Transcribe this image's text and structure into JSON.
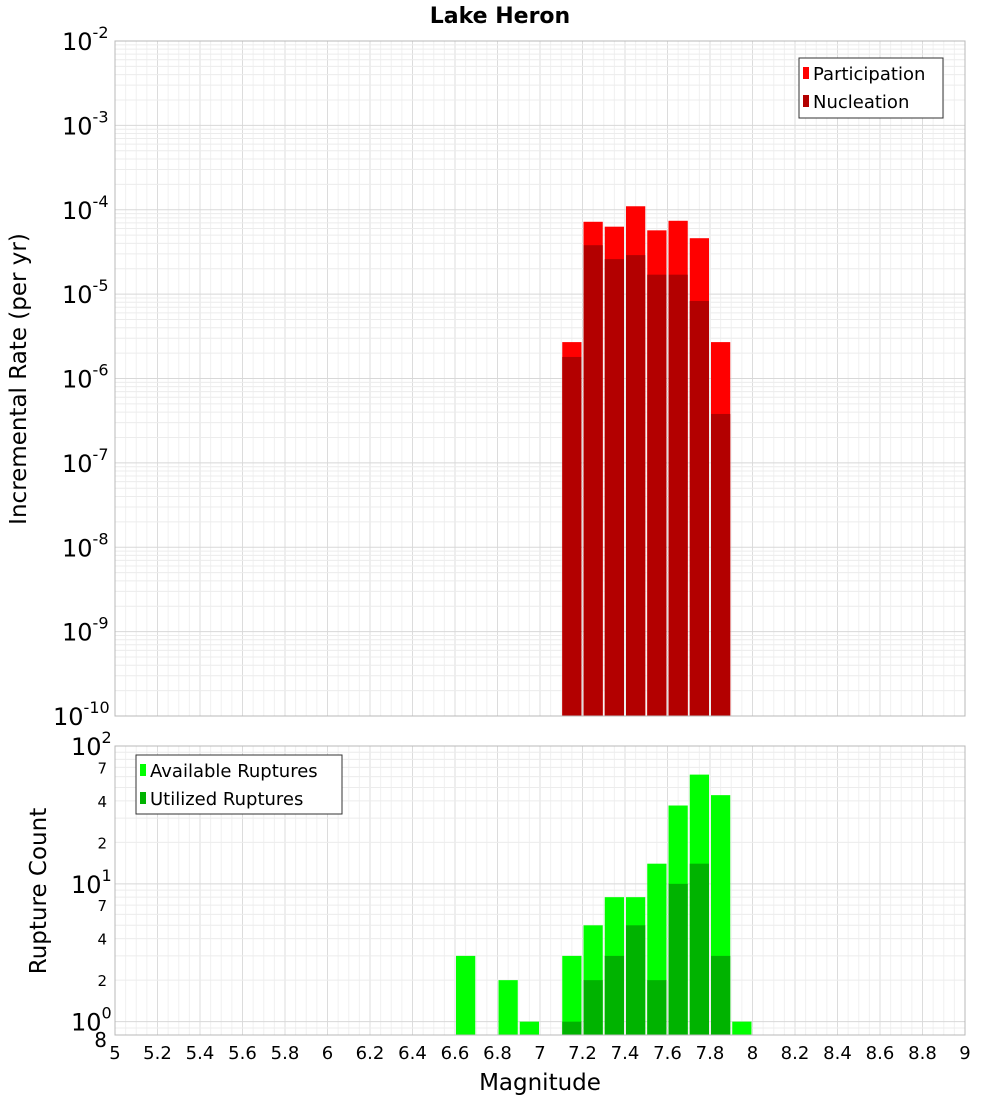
{
  "title": "Lake Heron",
  "colors": {
    "participation": "#ff0000",
    "nucleation": "#b30000",
    "available": "#00ff00",
    "utilized": "#00b300",
    "grid": "#e2e2e2",
    "frame": "#b8b8b8"
  },
  "chart_data": [
    {
      "type": "bar",
      "scale": "log",
      "ylabel": "Incremental Rate (per yr)",
      "ylim": [
        1e-10,
        0.01
      ],
      "y_tick_exponents": [
        -10,
        -9,
        -8,
        -7,
        -6,
        -5,
        -4,
        -3,
        -2
      ],
      "legend_position": "top-right",
      "x": [
        7.1,
        7.2,
        7.3,
        7.4,
        7.5,
        7.6,
        7.7,
        7.8
      ],
      "series": [
        {
          "name": "Participation",
          "values": [
            2.7e-06,
            7.2e-05,
            6.3e-05,
            0.00011,
            5.7e-05,
            7.4e-05,
            4.6e-05,
            2.7e-06
          ]
        },
        {
          "name": "Nucleation",
          "values": [
            1.8e-06,
            3.8e-05,
            2.6e-05,
            2.9e-05,
            1.7e-05,
            1.7e-05,
            8.3e-06,
            3.8e-07
          ]
        }
      ]
    },
    {
      "type": "bar",
      "scale": "log",
      "xlabel": "Magnitude",
      "ylabel": "Rupture Count",
      "ylim": [
        0.8,
        100
      ],
      "y_tick_exponents": [
        0,
        1,
        2
      ],
      "minor_tick_labels": [
        {
          "value": 0.8,
          "label": "8"
        },
        {
          "value": 2,
          "label": "2"
        },
        {
          "value": 4,
          "label": "4"
        },
        {
          "value": 7,
          "label": "7"
        },
        {
          "value": 20,
          "label": "2"
        },
        {
          "value": 40,
          "label": "4"
        },
        {
          "value": 70,
          "label": "7"
        }
      ],
      "legend_position": "top-left",
      "x": [
        6.6,
        6.8,
        6.9,
        7.1,
        7.2,
        7.3,
        7.4,
        7.5,
        7.6,
        7.7,
        7.8,
        7.9
      ],
      "series": [
        {
          "name": "Available Ruptures",
          "values": [
            3,
            2,
            1,
            3,
            5,
            8,
            8,
            14,
            37,
            62,
            44,
            1
          ]
        },
        {
          "name": "Utilized Ruptures",
          "values": [
            0,
            0,
            0,
            1,
            2,
            3,
            5,
            2,
            10,
            14,
            3,
            0
          ]
        }
      ]
    }
  ],
  "x_axis": {
    "min": 5,
    "max": 9,
    "ticks": [
      "5",
      "5.2",
      "5.4",
      "5.6",
      "5.8",
      "6",
      "6.2",
      "6.4",
      "6.6",
      "6.8",
      "7",
      "7.2",
      "7.4",
      "7.6",
      "7.8",
      "8",
      "8.2",
      "8.4",
      "8.6",
      "8.8",
      "9"
    ]
  }
}
